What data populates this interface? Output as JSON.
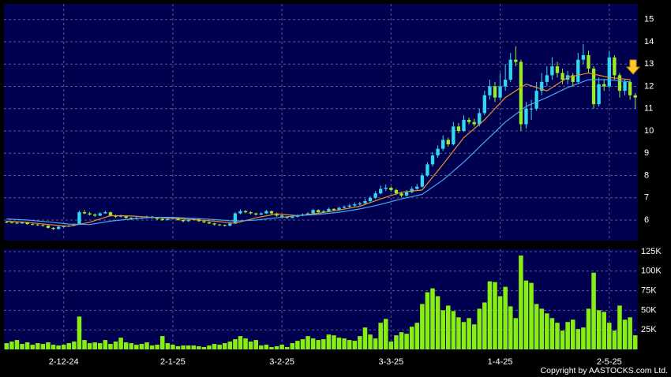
{
  "chart_data": {
    "type": "candlestick",
    "open": [
      5.92,
      5.9,
      5.88,
      5.85,
      5.9,
      5.82,
      5.8,
      5.78,
      5.75,
      5.65,
      5.6,
      5.7,
      5.72,
      5.75,
      5.8,
      6.35,
      6.3,
      6.25,
      6.2,
      6.3,
      6.35,
      6.2,
      6.15,
      6.2,
      6.1,
      6.05,
      6.1,
      6.1,
      6.15,
      6.1,
      6.05,
      6.0,
      6.05,
      6.1,
      6.0,
      5.95,
      6.0,
      6.05,
      5.95,
      5.9,
      5.85,
      5.8,
      5.78,
      5.75,
      5.85,
      6.3,
      6.4,
      6.35,
      6.3,
      6.25,
      6.3,
      6.4,
      6.3,
      6.2,
      6.15,
      6.1,
      6.15,
      6.2,
      6.25,
      6.3,
      6.45,
      6.35,
      6.4,
      6.5,
      6.45,
      6.55,
      6.6,
      6.65,
      6.7,
      6.75,
      6.85,
      7.0,
      7.2,
      7.4,
      7.45,
      7.35,
      7.2,
      7.1,
      7.25,
      7.4,
      7.5,
      8.0,
      8.5,
      8.9,
      9.2,
      9.6,
      9.4,
      10.2,
      10.0,
      10.5,
      10.4,
      10.3,
      10.8,
      11.6,
      12.0,
      11.5,
      12.0,
      12.3,
      13.2,
      13.1,
      10.3,
      11.0,
      11.0,
      11.8,
      12.2,
      12.5,
      12.9,
      12.6,
      12.3,
      12.5,
      12.2,
      13.2,
      13.4,
      12.8,
      11.2,
      12.1,
      12.0,
      13.3,
      12.5,
      11.8,
      12.2,
      11.6
    ],
    "high": [
      5.97,
      5.94,
      5.92,
      5.94,
      5.92,
      5.86,
      5.84,
      5.8,
      5.77,
      5.68,
      5.74,
      5.76,
      5.78,
      5.84,
      6.42,
      6.45,
      6.36,
      6.3,
      6.35,
      6.42,
      6.38,
      6.24,
      6.25,
      6.22,
      6.13,
      6.14,
      6.15,
      6.2,
      6.18,
      6.12,
      6.08,
      6.1,
      6.15,
      6.12,
      6.03,
      6.04,
      6.09,
      6.07,
      5.98,
      5.93,
      5.88,
      5.83,
      5.8,
      5.9,
      6.36,
      6.48,
      6.45,
      6.4,
      6.33,
      6.35,
      6.46,
      6.42,
      6.33,
      6.24,
      6.18,
      6.2,
      6.25,
      6.3,
      6.36,
      6.5,
      6.48,
      6.45,
      6.56,
      6.53,
      6.6,
      6.66,
      6.72,
      6.8,
      6.82,
      6.95,
      7.08,
      7.3,
      7.55,
      7.6,
      7.5,
      7.4,
      7.25,
      7.35,
      7.5,
      7.62,
      8.1,
      8.6,
      9.05,
      9.35,
      9.8,
      9.7,
      10.4,
      10.35,
      10.7,
      10.6,
      10.55,
      11.0,
      11.8,
      12.3,
      12.2,
      12.6,
      13.0,
      13.5,
      13.8,
      13.2,
      11.3,
      11.4,
      12.2,
      12.6,
      12.9,
      13.3,
      13.1,
      12.8,
      12.7,
      12.6,
      13.5,
      13.9,
      13.6,
      12.9,
      12.4,
      12.3,
      13.6,
      13.4,
      12.6,
      12.3,
      12.3,
      11.7
    ],
    "low": [
      5.86,
      5.85,
      5.82,
      5.83,
      5.79,
      5.77,
      5.74,
      5.7,
      5.62,
      5.56,
      5.58,
      5.66,
      5.69,
      5.72,
      5.78,
      6.26,
      6.2,
      6.15,
      6.18,
      6.28,
      6.16,
      6.1,
      6.12,
      6.06,
      6.0,
      6.02,
      6.06,
      6.08,
      6.06,
      6.0,
      5.96,
      5.98,
      6.02,
      5.97,
      5.9,
      5.92,
      5.97,
      5.92,
      5.86,
      5.82,
      5.76,
      5.74,
      5.71,
      5.72,
      5.83,
      6.26,
      6.3,
      6.25,
      6.2,
      6.22,
      6.27,
      6.25,
      6.15,
      6.1,
      6.05,
      6.08,
      6.12,
      6.17,
      6.22,
      6.28,
      6.3,
      6.32,
      6.37,
      6.4,
      6.42,
      6.52,
      6.56,
      6.6,
      6.65,
      6.7,
      6.8,
      6.95,
      7.15,
      7.3,
      7.28,
      7.12,
      7.02,
      7.05,
      7.2,
      7.35,
      7.45,
      7.95,
      8.4,
      8.8,
      9.1,
      9.3,
      9.35,
      9.9,
      9.95,
      10.3,
      10.2,
      10.2,
      10.7,
      11.4,
      11.3,
      11.4,
      11.8,
      12.2,
      12.9,
      10.0,
      10.1,
      10.5,
      10.9,
      11.6,
      12.0,
      12.3,
      12.4,
      12.1,
      12.1,
      12.0,
      12.1,
      13.0,
      12.6,
      11.0,
      11.1,
      11.8,
      11.9,
      12.3,
      11.5,
      11.6,
      11.4,
      11.0
    ],
    "close": [
      5.9,
      5.88,
      5.85,
      5.9,
      5.82,
      5.8,
      5.78,
      5.75,
      5.65,
      5.6,
      5.7,
      5.72,
      5.75,
      5.8,
      6.35,
      6.3,
      6.25,
      6.2,
      6.3,
      6.35,
      6.2,
      6.15,
      6.2,
      6.1,
      6.05,
      6.1,
      6.1,
      6.15,
      6.1,
      6.05,
      6.0,
      6.05,
      6.1,
      6.0,
      5.95,
      6.0,
      6.05,
      5.95,
      5.9,
      5.85,
      5.8,
      5.78,
      5.75,
      5.85,
      6.3,
      6.4,
      6.35,
      6.3,
      6.25,
      6.3,
      6.4,
      6.3,
      6.2,
      6.15,
      6.1,
      6.15,
      6.2,
      6.25,
      6.3,
      6.45,
      6.35,
      6.4,
      6.5,
      6.45,
      6.55,
      6.6,
      6.65,
      6.7,
      6.75,
      6.85,
      7.0,
      7.2,
      7.4,
      7.45,
      7.35,
      7.2,
      7.1,
      7.25,
      7.4,
      7.5,
      8.0,
      8.5,
      8.9,
      9.2,
      9.6,
      9.4,
      10.2,
      10.0,
      10.5,
      10.4,
      10.3,
      10.8,
      11.6,
      12.0,
      11.5,
      12.0,
      12.3,
      13.2,
      13.1,
      10.3,
      11.0,
      11.0,
      11.8,
      12.2,
      12.5,
      12.9,
      12.6,
      12.3,
      12.5,
      12.2,
      13.2,
      13.4,
      12.8,
      11.2,
      12.1,
      12.0,
      13.3,
      12.5,
      11.8,
      12.2,
      11.6,
      11.5
    ],
    "volume": [
      8000,
      10000,
      12000,
      7000,
      9000,
      6000,
      8000,
      7000,
      9000,
      6000,
      5000,
      6000,
      8000,
      10000,
      42000,
      12000,
      8000,
      9000,
      8000,
      12000,
      7000,
      10000,
      15000,
      9000,
      8000,
      6000,
      7000,
      9000,
      5000,
      6000,
      17000,
      8000,
      6000,
      4000,
      5000,
      5000,
      5000,
      4000,
      3000,
      5000,
      7000,
      6000,
      8000,
      10000,
      13000,
      17000,
      14000,
      10000,
      12000,
      5000,
      6000,
      3000,
      4000,
      6000,
      3000,
      8000,
      11000,
      13000,
      17000,
      14000,
      12000,
      13000,
      19000,
      18000,
      15000,
      14000,
      12000,
      11000,
      17000,
      28000,
      19000,
      14000,
      34000,
      39000,
      10000,
      18000,
      22000,
      20000,
      29000,
      34000,
      58000,
      73000,
      78000,
      68000,
      50000,
      56000,
      49000,
      41000,
      35000,
      40000,
      32000,
      52000,
      60000,
      87000,
      86000,
      68000,
      80000,
      55000,
      40000,
      120000,
      88000,
      85000,
      58000,
      52000,
      46000,
      40000,
      34000,
      24000,
      35000,
      38000,
      26000,
      28000,
      52000,
      98000,
      50000,
      48000,
      34000,
      24000,
      56000,
      38000,
      41000,
      18000
    ],
    "moving_averages": [
      {
        "color": "#e8902a",
        "x": [
          0,
          4,
          8,
          12,
          16,
          20,
          24,
          28,
          32,
          36,
          40,
          44,
          48,
          52,
          56,
          60,
          64,
          68,
          72,
          76,
          80,
          84,
          88,
          92,
          96,
          100,
          104,
          108,
          112,
          116,
          120
        ],
        "values": [
          5.95,
          5.9,
          5.8,
          5.72,
          5.9,
          6.2,
          6.18,
          6.12,
          6.08,
          6.02,
          5.95,
          5.85,
          6.1,
          6.28,
          6.2,
          6.3,
          6.45,
          6.62,
          6.95,
          7.25,
          7.35,
          8.5,
          9.7,
          10.5,
          11.5,
          12.1,
          11.8,
          12.4,
          12.6,
          12.4,
          12.3
        ]
      },
      {
        "color": "#4aa6f0",
        "x": [
          0,
          4,
          8,
          12,
          16,
          20,
          24,
          28,
          32,
          36,
          40,
          44,
          48,
          52,
          56,
          60,
          64,
          68,
          72,
          76,
          80,
          84,
          88,
          92,
          96,
          100,
          104,
          108,
          112,
          116,
          120
        ],
        "values": [
          6.05,
          6.0,
          5.92,
          5.82,
          5.8,
          5.95,
          6.05,
          6.12,
          6.12,
          6.08,
          6.02,
          5.95,
          6.0,
          6.1,
          6.2,
          6.25,
          6.35,
          6.5,
          6.7,
          6.95,
          7.15,
          7.8,
          8.6,
          9.5,
          10.4,
          11.1,
          11.5,
          11.95,
          12.3,
          12.3,
          12.2
        ]
      }
    ],
    "up_color": "#33d8f0",
    "down_color": "#99ee22",
    "volume_color": "#88ee11",
    "xticks": [
      {
        "value": 11,
        "label": "2-12-24"
      },
      {
        "value": 32,
        "label": "2-1-25"
      },
      {
        "value": 53,
        "label": "3-2-25"
      },
      {
        "value": 74,
        "label": "3-3-25"
      },
      {
        "value": 95,
        "label": "1-4-25"
      },
      {
        "value": 116,
        "label": "2-5-25"
      }
    ],
    "xlim": [
      -0.5,
      121.5
    ],
    "ylim": [
      5.08,
      15.7
    ],
    "yticks": [
      6,
      7,
      8,
      9,
      10,
      11,
      12,
      13,
      14,
      15
    ],
    "volume_ylim": [
      0,
      128000
    ],
    "volume_yticks": [
      {
        "value": 25000,
        "label": "25K"
      },
      {
        "value": 50000,
        "label": "50K"
      },
      {
        "value": 75000,
        "label": "75K"
      },
      {
        "value": 100000,
        "label": "100K"
      },
      {
        "value": 125000,
        "label": "125K"
      }
    ],
    "grid": true,
    "copyright": "Copyright by AASTOCKS.com Ltd."
  }
}
